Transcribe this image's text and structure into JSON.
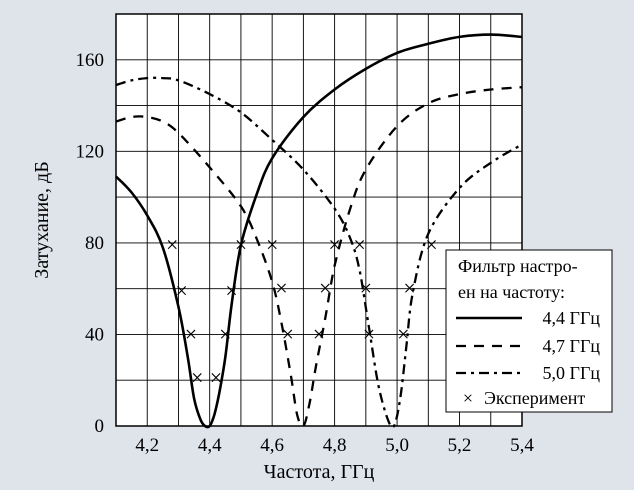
{
  "chart_data": {
    "type": "line",
    "title": "",
    "xlabel": "Частота, ГГц",
    "ylabel": "Затухание, дБ",
    "xlim": [
      4.1,
      5.4
    ],
    "ylim": [
      0,
      180
    ],
    "xticks": [
      4.2,
      4.3,
      4.4,
      4.5,
      4.6,
      4.7,
      4.8,
      4.9,
      5.0,
      5.1,
      5.2,
      5.3,
      5.4
    ],
    "xtick_labels": [
      "4,2",
      "4,4",
      "4,6",
      "4,8",
      "5,0",
      "5,2",
      "5,4"
    ],
    "xtick_label_values": [
      4.2,
      4.4,
      4.6,
      4.8,
      5.0,
      5.2,
      5.4
    ],
    "yticks": [
      20,
      40,
      60,
      80,
      100,
      120,
      140,
      160
    ],
    "ytick_labels": [
      "0",
      "40",
      "80",
      "120",
      "160"
    ],
    "ytick_label_values": [
      0,
      40,
      80,
      120,
      160
    ],
    "grid": true,
    "legend": {
      "placement": "bottom-right",
      "title_lines": [
        "Фильтр настро-",
        "ен на частоту:"
      ],
      "entries": [
        "4,4 ГГц",
        "4,7 ГГц",
        "5,0 ГГц",
        "Эксперимент"
      ]
    },
    "series": [
      {
        "name": "4,4 ГГц",
        "style": "solid",
        "x": [
          4.1,
          4.15,
          4.2,
          4.25,
          4.3,
          4.33,
          4.35,
          4.37,
          4.385,
          4.4,
          4.415,
          4.43,
          4.45,
          4.47,
          4.5,
          4.55,
          4.6,
          4.7,
          4.8,
          4.9,
          5.0,
          5.1,
          5.2,
          5.3,
          5.4
        ],
        "y": [
          109,
          102,
          92,
          78,
          52,
          30,
          12,
          3,
          0,
          0,
          5,
          14,
          30,
          53,
          79,
          101,
          117,
          135,
          147,
          156,
          163,
          167,
          170,
          171,
          170
        ]
      },
      {
        "name": "4,7 ГГц",
        "style": "dashed",
        "x": [
          4.1,
          4.15,
          4.2,
          4.25,
          4.3,
          4.4,
          4.5,
          4.55,
          4.6,
          4.63,
          4.66,
          4.68,
          4.7,
          4.72,
          4.74,
          4.77,
          4.8,
          4.85,
          4.9,
          5.0,
          5.1,
          5.2,
          5.3,
          5.4
        ],
        "y": [
          133,
          135,
          135,
          133,
          128,
          113,
          96,
          82,
          63,
          45,
          22,
          5,
          0,
          10,
          26,
          47,
          70,
          95,
          112,
          131,
          141,
          145,
          147,
          148
        ]
      },
      {
        "name": "5,0 ГГц",
        "style": "dash-dot",
        "x": [
          4.1,
          4.15,
          4.2,
          4.25,
          4.3,
          4.4,
          4.5,
          4.6,
          4.7,
          4.8,
          4.85,
          4.88,
          4.91,
          4.94,
          4.97,
          4.99,
          5.01,
          5.03,
          5.05,
          5.1,
          5.2,
          5.3,
          5.4
        ],
        "y": [
          149,
          151,
          152,
          152,
          151,
          145,
          137,
          125,
          112,
          95,
          82,
          68,
          43,
          18,
          3,
          0,
          12,
          35,
          58,
          84,
          104,
          115,
          123
        ]
      }
    ],
    "experiment": {
      "name": "Эксперимент",
      "marker": "×",
      "x": [
        4.28,
        4.31,
        4.34,
        4.36,
        4.42,
        4.45,
        4.47,
        4.5,
        4.6,
        4.63,
        4.65,
        4.75,
        4.77,
        4.8,
        4.88,
        4.9,
        4.91,
        5.02,
        5.04,
        5.11
      ],
      "y": [
        79,
        59,
        40,
        21,
        21,
        40,
        59,
        79,
        79,
        60,
        40,
        40,
        60,
        79,
        79,
        60,
        40,
        40,
        60,
        79
      ]
    }
  }
}
